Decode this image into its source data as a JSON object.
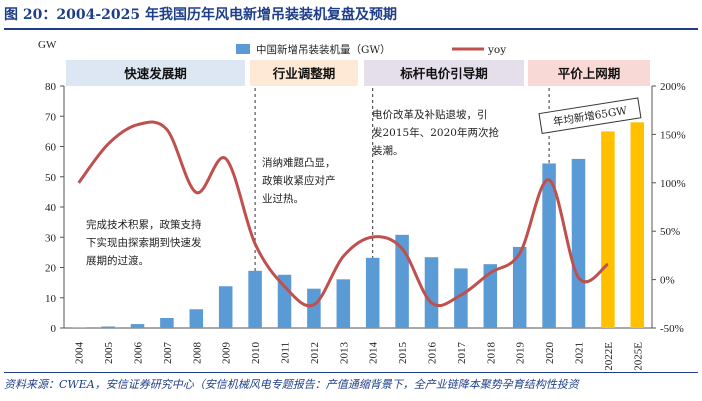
{
  "title": "图 20：2004-2025 年我国历年风电新增吊装装机复盘及预期",
  "source": "资料来源：CWEA，安信证券研究中心（安信机械风电专题报告：产值通缩背景下，全产业链降本聚势孕育结构性投资",
  "chart_data": {
    "type": "bar",
    "categories": [
      "2004",
      "2005",
      "2006",
      "2007",
      "2008",
      "2009",
      "2010",
      "2011",
      "2012",
      "2013",
      "2014",
      "2015",
      "2016",
      "2017",
      "2018",
      "2019",
      "2020",
      "2021",
      "2022E",
      "2025E"
    ],
    "series": [
      {
        "name": "中国新增吊装装机量（GW）",
        "type": "bar",
        "axis": "left",
        "values": [
          0.2,
          0.5,
          1.3,
          3.3,
          6.2,
          13.8,
          18.9,
          17.6,
          13.0,
          16.1,
          23.2,
          30.8,
          23.4,
          19.7,
          21.1,
          26.8,
          54.4,
          55.9,
          65,
          68
        ],
        "colors": {
          "historic": "#5b9bd5",
          "forecast": "#ffc000"
        }
      },
      {
        "name": "yoy",
        "type": "line",
        "axis": "right",
        "values": [
          100,
          140,
          160,
          155,
          90,
          125,
          37,
          -7,
          -26,
          24,
          44,
          32,
          -24,
          -16,
          7,
          27,
          103,
          2,
          16,
          null
        ],
        "color": "#c0504d"
      }
    ],
    "left_axis": {
      "label": "GW",
      "min": 0,
      "max": 80,
      "ticks": [
        0,
        10,
        20,
        30,
        40,
        50,
        60,
        70,
        80
      ]
    },
    "right_axis": {
      "min": -50,
      "max": 200,
      "ticks": [
        "-50%",
        "0%",
        "50%",
        "100%",
        "150%",
        "200%"
      ]
    },
    "phases": [
      {
        "label": "快速发展期",
        "bg": "#dde7f3"
      },
      {
        "label": "行业调整期",
        "bg": "#fde9d5"
      },
      {
        "label": "标杆电价引导期",
        "bg": "#e5dfec"
      },
      {
        "label": "平价上网期",
        "bg": "#f8d9d6"
      }
    ],
    "annotations": [
      {
        "lines": [
          "完成技术积累，政策支持",
          "下实现由探索期到快速发",
          "展期的过渡。"
        ]
      },
      {
        "lines": [
          "消纳难题凸显，",
          "政策收紧应对产",
          "业过热。"
        ]
      },
      {
        "lines": [
          "电价改革及补贴退坡，引",
          "发2015年、2020年两次抢",
          "装潮。"
        ]
      },
      {
        "lines": [
          "年均新增65GW"
        ]
      }
    ],
    "legend": {
      "position": "top"
    }
  }
}
